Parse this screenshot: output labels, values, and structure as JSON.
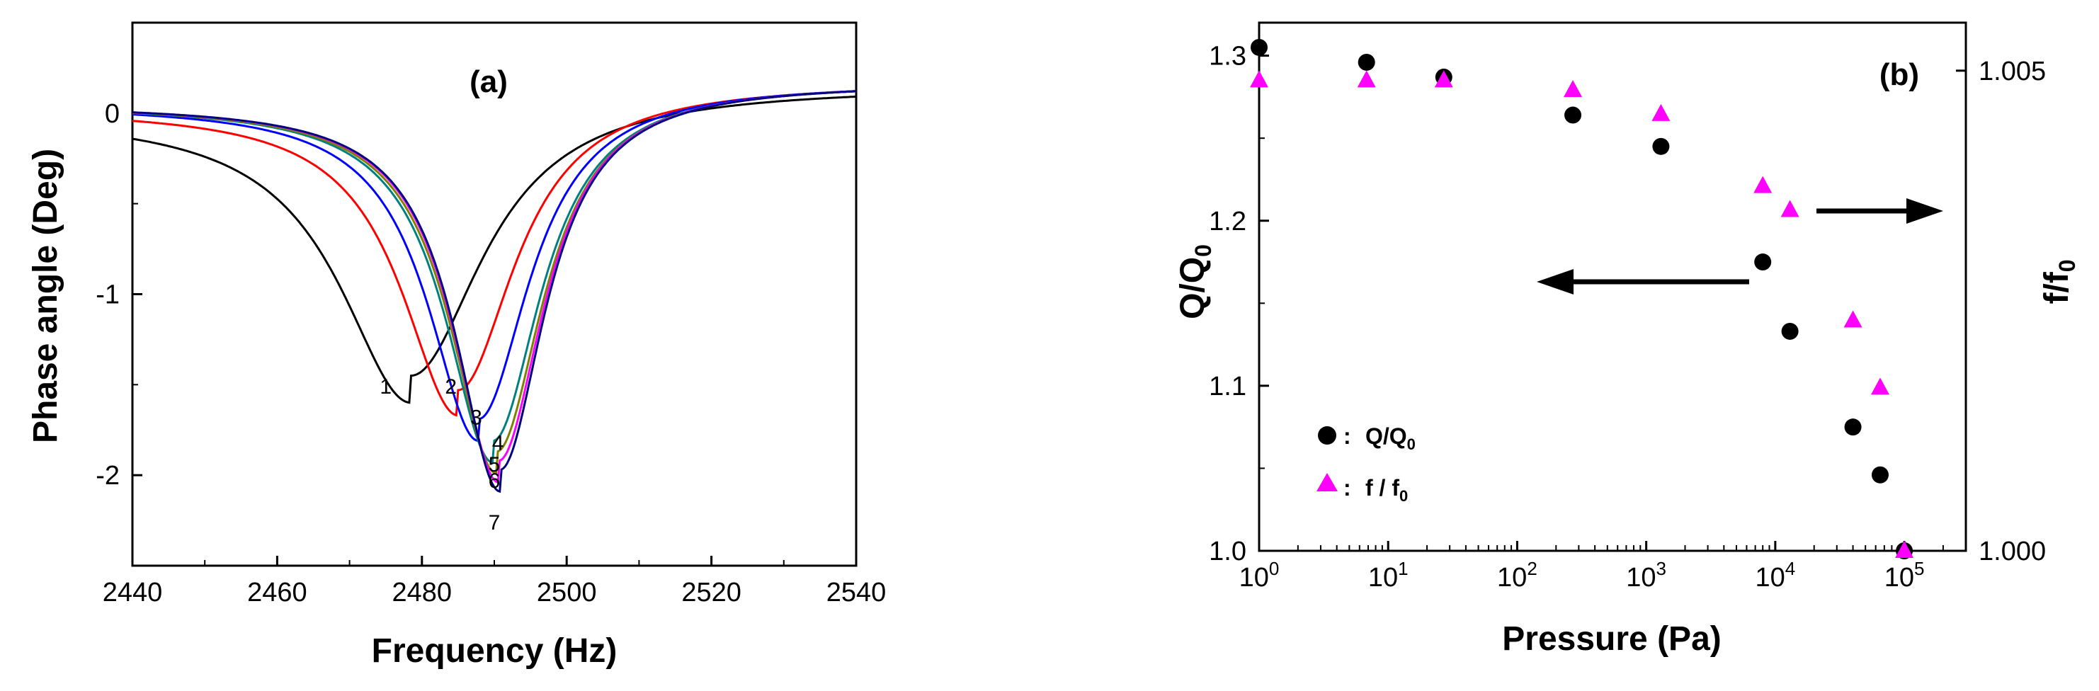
{
  "chart_data": [
    {
      "type": "line",
      "panel_label": "(a)",
      "xlabel": "Frequency (Hz)",
      "ylabel": "Phase angle (Deg)",
      "xlim": [
        2440,
        2540
      ],
      "ylim": [
        -2.5,
        0.5
      ],
      "x_ticks": [
        "2440",
        "2460",
        "2480",
        "2500",
        "2520",
        "2540"
      ],
      "y_ticks": [
        "-2",
        "-1",
        "0"
      ],
      "series": [
        {
          "name": "1",
          "color": "#000000",
          "x0": 2478.5,
          "depth": 1.6,
          "gamma": 12.0,
          "left": 0.0,
          "right": 0.15
        },
        {
          "name": "2",
          "color": "#ff0000",
          "x0": 2485.0,
          "depth": 1.7,
          "gamma": 9.5,
          "left": 0.03,
          "right": 0.17
        },
        {
          "name": "3",
          "color": "#0000ff",
          "x0": 2487.8,
          "depth": 1.86,
          "gamma": 8.5,
          "left": 0.05,
          "right": 0.17
        },
        {
          "name": "4",
          "color": "#008080",
          "x0": 2489.8,
          "depth": 1.98,
          "gamma": 8.0,
          "left": 0.05,
          "right": 0.17
        },
        {
          "name": "5",
          "color": "#808000",
          "x0": 2490.3,
          "depth": 2.04,
          "gamma": 7.8,
          "left": 0.05,
          "right": 0.17
        },
        {
          "name": "6",
          "color": "#ff00ff",
          "x0": 2490.6,
          "depth": 2.09,
          "gamma": 7.6,
          "left": 0.05,
          "right": 0.17
        },
        {
          "name": "7",
          "color": "#000080",
          "x0": 2490.8,
          "depth": 2.14,
          "gamma": 7.5,
          "left": 0.05,
          "right": 0.17
        }
      ],
      "curve_labels": [
        {
          "text": "1",
          "x": 2475,
          "y": -1.55
        },
        {
          "text": "2",
          "x": 2484,
          "y": -1.55
        },
        {
          "text": "3",
          "x": 2487.5,
          "y": -1.72
        },
        {
          "text": "4",
          "x": 2490.5,
          "y": -1.86
        },
        {
          "text": "5",
          "x": 2490,
          "y": -1.98
        },
        {
          "text": "6",
          "x": 2490,
          "y": -2.07
        },
        {
          "text": "7",
          "x": 2490,
          "y": -2.3
        }
      ]
    },
    {
      "type": "scatter",
      "panel_label": "(b)",
      "xlabel": "Pressure (Pa)",
      "ylabel": "Q/Q0",
      "ylabel_right": "f/f0",
      "xscale": "log",
      "xlim": [
        1,
        300000
      ],
      "ylim": [
        1.0,
        1.32
      ],
      "ylim_right": [
        1.0,
        1.0055
      ],
      "x_ticks": [
        "0",
        "1",
        "2",
        "3",
        "4",
        "5"
      ],
      "y_ticks": [
        "1.0",
        "1.1",
        "1.2",
        "1.3"
      ],
      "y_ticks_right": [
        "1.000",
        "1.005"
      ],
      "series": [
        {
          "name": "Q/Q0",
          "marker": "circle",
          "color": "#000000",
          "x": [
            1,
            6.8,
            27,
            270,
            1300,
            8000,
            13000,
            40000,
            65000,
            100000
          ],
          "y": [
            1.305,
            1.296,
            1.287,
            1.264,
            1.245,
            1.175,
            1.133,
            1.075,
            1.046,
            1.0
          ]
        },
        {
          "name": "f / f0",
          "marker": "triangle",
          "color": "#ff00ff",
          "x": [
            1,
            6.8,
            27,
            270,
            1300,
            8000,
            13000,
            40000,
            65000,
            100000
          ],
          "y": [
            1.0049,
            1.0049,
            1.0049,
            1.0048,
            1.00455,
            1.0038,
            1.00355,
            1.0024,
            1.0017,
            1.0
          ]
        }
      ],
      "legend": [
        {
          "marker": "circle",
          "color": "#000000",
          "sep": ":",
          "base": "Q/Q",
          "sub": "0"
        },
        {
          "marker": "triangle",
          "color": "#ff00ff",
          "sep": ":",
          "base": "f / f",
          "sub": "0"
        }
      ],
      "legend_position": "bottom-left",
      "arrows": [
        {
          "direction": "left",
          "axis": "Q/Q0"
        },
        {
          "direction": "right",
          "axis": "f/f0"
        }
      ]
    }
  ]
}
